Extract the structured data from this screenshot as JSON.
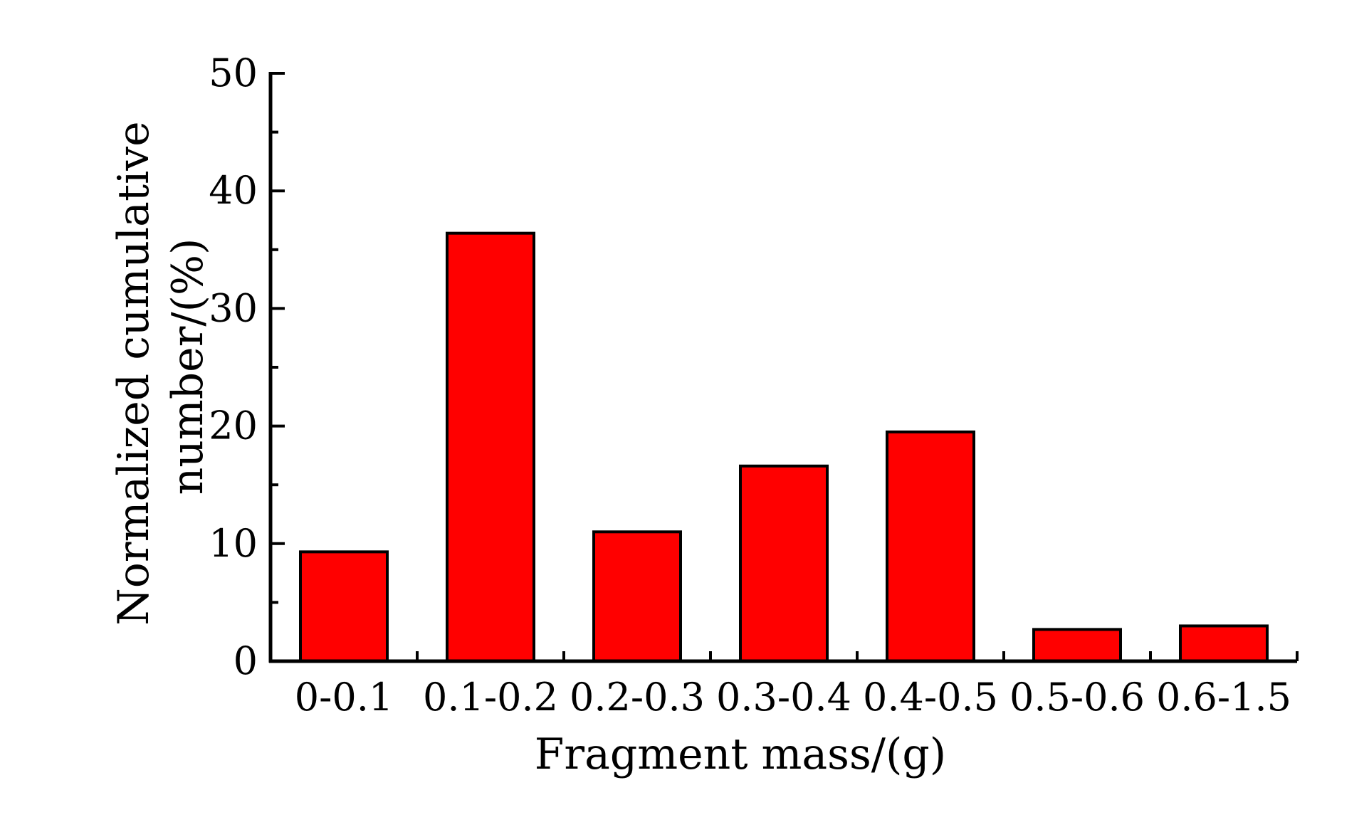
{
  "chart_data": {
    "type": "bar",
    "title": "",
    "xlabel": "Fragment mass/(g)",
    "ylabel_lines": [
      "Normalized cumulative",
      "number/(%)"
    ],
    "categories": [
      "0-0.1",
      "0.1-0.2",
      "0.2-0.3",
      "0.3-0.4",
      "0.4-0.5",
      "0.5-0.6",
      "0.6-1.5"
    ],
    "values": [
      9.3,
      36.4,
      11.0,
      16.6,
      19.5,
      2.7,
      3.0
    ],
    "ylim": [
      0,
      50
    ],
    "yticks": [
      0,
      10,
      20,
      30,
      40,
      50
    ],
    "grid": false,
    "bar_color": "#ff0000",
    "bar_edge_color": "#000000"
  }
}
